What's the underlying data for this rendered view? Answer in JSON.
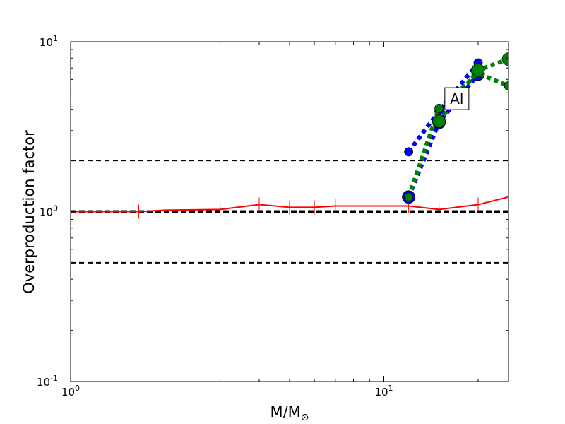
{
  "chart_data": {
    "type": "line",
    "title": "",
    "xlabel_main": "M/M",
    "xlabel_sub": "⊙",
    "ylabel": "Overproduction factor",
    "xscale": "log",
    "yscale": "log",
    "xlim": [
      1,
      25
    ],
    "ylim": [
      0.1,
      10
    ],
    "x_ticks": [
      {
        "value": 1,
        "base": "10",
        "exp": "0"
      },
      {
        "value": 10,
        "base": "10",
        "exp": "1"
      }
    ],
    "y_ticks": [
      {
        "value": 0.1,
        "base": "10",
        "exp": "-1"
      },
      {
        "value": 1,
        "base": "10",
        "exp": "0"
      },
      {
        "value": 10,
        "base": "10",
        "exp": "1"
      }
    ],
    "reference_lines": [
      {
        "y": 2,
        "style": "dashed",
        "color": "#000000"
      },
      {
        "y": 1,
        "style": "thick-dashed",
        "color": "#000000"
      },
      {
        "y": 0.5,
        "style": "dashed",
        "color": "#000000"
      }
    ],
    "series": [
      {
        "style": "solid",
        "color": "#ff0000",
        "marker": "vline",
        "x": [
          1,
          1.65,
          2,
          3,
          4,
          5,
          6,
          7,
          12,
          15,
          20,
          25
        ],
        "y": [
          1.0,
          1.0,
          1.02,
          1.03,
          1.1,
          1.06,
          1.06,
          1.08,
          1.08,
          1.03,
          1.1,
          1.22
        ]
      },
      {
        "style": "dotted",
        "color": "#0000ff",
        "marker": "circle",
        "x": [
          12,
          15,
          20
        ],
        "y": [
          2.25,
          3.9,
          7.5
        ]
      },
      {
        "style": "dotted",
        "color": "#0000ff",
        "marker": "circle-large",
        "x": [
          12,
          15,
          20
        ],
        "y": [
          1.22,
          3.35,
          6.45
        ]
      },
      {
        "style": "dotted",
        "color": "#008000",
        "marker": "circle",
        "x": [
          12,
          15,
          20,
          25
        ],
        "y": [
          1.22,
          4.05,
          6.5,
          5.5
        ]
      },
      {
        "style": "dotted",
        "color": "#008000",
        "marker": "circle-large",
        "x": [
          15,
          20,
          25
        ],
        "y": [
          3.4,
          6.8,
          7.9
        ]
      }
    ],
    "annotations": [
      {
        "text": "Al",
        "x": 17.1,
        "y": 4.6
      }
    ]
  }
}
